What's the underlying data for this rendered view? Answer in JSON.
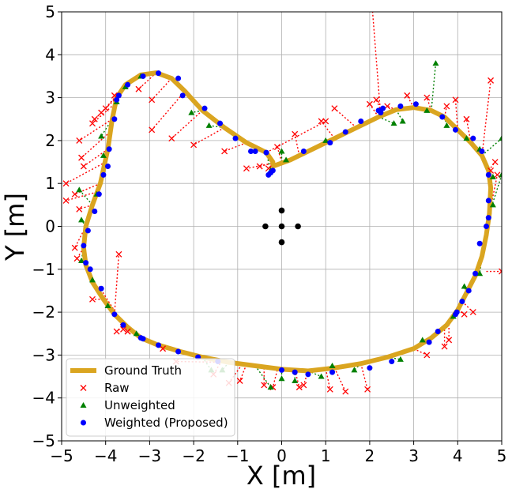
{
  "chart_data": {
    "type": "scatter",
    "xlabel": "X [m]",
    "ylabel": "Y [m]",
    "xlim": [
      -5,
      5
    ],
    "ylim": [
      -5,
      5
    ],
    "xticks": [
      "−5",
      "−4",
      "−3",
      "−2",
      "−1",
      "0",
      "1",
      "2",
      "3",
      "4",
      "5"
    ],
    "yticks": [
      "−5",
      "−4",
      "−3",
      "−2",
      "−1",
      "0",
      "1",
      "2",
      "3",
      "4",
      "5"
    ],
    "grid": true,
    "legend_position": "lower-left",
    "colors": {
      "ground_truth": "#daa520",
      "raw": "#ff0000",
      "unweighted": "#008000",
      "weighted": "#0000ff",
      "anchors": "#000000"
    },
    "legend": [
      {
        "label": "Ground Truth",
        "marker": "line",
        "color": "#daa520"
      },
      {
        "label": "Raw",
        "marker": "x",
        "color": "#ff0000"
      },
      {
        "label": "Unweighted",
        "marker": "triangle",
        "color": "#008000"
      },
      {
        "label": "Weighted (Proposed)",
        "marker": "circle",
        "color": "#0000ff"
      }
    ],
    "anchors": [
      [
        0,
        0
      ],
      [
        0,
        0.37
      ],
      [
        0,
        -0.37
      ],
      [
        -0.37,
        0
      ],
      [
        0.37,
        0
      ]
    ],
    "ground_truth": [
      [
        -0.35,
        1.72
      ],
      [
        -0.8,
        1.95
      ],
      [
        -1.3,
        2.3
      ],
      [
        -1.8,
        2.7
      ],
      [
        -2.2,
        3.15
      ],
      [
        -2.5,
        3.45
      ],
      [
        -2.85,
        3.58
      ],
      [
        -3.2,
        3.53
      ],
      [
        -3.55,
        3.3
      ],
      [
        -3.75,
        3.0
      ],
      [
        -3.85,
        2.5
      ],
      [
        -3.95,
        1.8
      ],
      [
        -4.12,
        1.0
      ],
      [
        -4.3,
        0.5
      ],
      [
        -4.45,
        0.0
      ],
      [
        -4.5,
        -0.5
      ],
      [
        -4.45,
        -0.9
      ],
      [
        -4.3,
        -1.3
      ],
      [
        -4.05,
        -1.7
      ],
      [
        -3.8,
        -2.05
      ],
      [
        -3.5,
        -2.35
      ],
      [
        -3.2,
        -2.6
      ],
      [
        -2.85,
        -2.75
      ],
      [
        -2.3,
        -2.92
      ],
      [
        -1.8,
        -3.05
      ],
      [
        -1.2,
        -3.17
      ],
      [
        -0.6,
        -3.25
      ],
      [
        0.0,
        -3.33
      ],
      [
        0.6,
        -3.37
      ],
      [
        1.2,
        -3.3
      ],
      [
        1.8,
        -3.2
      ],
      [
        2.4,
        -3.05
      ],
      [
        3.0,
        -2.85
      ],
      [
        3.4,
        -2.6
      ],
      [
        3.75,
        -2.3
      ],
      [
        4.0,
        -1.95
      ],
      [
        4.2,
        -1.55
      ],
      [
        4.4,
        -1.15
      ],
      [
        4.55,
        -0.7
      ],
      [
        4.65,
        -0.2
      ],
      [
        4.72,
        0.3
      ],
      [
        4.75,
        0.9
      ],
      [
        4.7,
        1.3
      ],
      [
        4.55,
        1.65
      ],
      [
        4.3,
        1.95
      ],
      [
        4.0,
        2.25
      ],
      [
        3.7,
        2.55
      ],
      [
        3.4,
        2.7
      ],
      [
        3.0,
        2.77
      ],
      [
        2.6,
        2.72
      ],
      [
        2.2,
        2.55
      ],
      [
        1.7,
        2.3
      ],
      [
        1.2,
        2.05
      ],
      [
        0.7,
        1.8
      ],
      [
        0.2,
        1.55
      ],
      [
        -0.2,
        1.4
      ],
      [
        -0.2,
        1.5
      ],
      [
        -0.35,
        1.72
      ]
    ],
    "raw": [
      [
        -0.35,
        1.72,
        1.0,
        2.45
      ],
      [
        -0.8,
        1.95,
        -1.3,
        1.75
      ],
      [
        -1.3,
        2.3,
        -2.0,
        1.9
      ],
      [
        -1.8,
        2.7,
        -2.5,
        2.05
      ],
      [
        -2.2,
        3.15,
        -2.95,
        2.25
      ],
      [
        -2.5,
        3.45,
        -2.95,
        2.95
      ],
      [
        -2.85,
        3.58,
        -3.25,
        3.2
      ],
      [
        -3.2,
        3.53,
        -3.8,
        3.05
      ],
      [
        -3.55,
        3.3,
        -4.0,
        2.75
      ],
      [
        -3.7,
        3.1,
        -4.1,
        2.65
      ],
      [
        -3.75,
        3.0,
        -4.25,
        2.5
      ],
      [
        -3.8,
        2.85,
        -4.3,
        2.4
      ],
      [
        -3.85,
        2.5,
        -4.6,
        2.0
      ],
      [
        -3.9,
        2.2,
        -4.55,
        1.6
      ],
      [
        -3.95,
        1.8,
        -4.5,
        1.4
      ],
      [
        -4.0,
        1.5,
        -4.9,
        1.0
      ],
      [
        -4.12,
        1.0,
        -4.7,
        0.75
      ],
      [
        -4.2,
        0.8,
        -4.9,
        0.6
      ],
      [
        -4.3,
        0.5,
        -4.6,
        0.4
      ],
      [
        -4.45,
        0.0,
        -4.7,
        -0.5
      ],
      [
        -4.5,
        -0.5,
        -4.65,
        -0.75
      ],
      [
        -4.05,
        -1.7,
        -4.3,
        -1.7
      ],
      [
        -3.8,
        -2.05,
        -3.7,
        -0.65
      ],
      [
        -3.7,
        -2.2,
        -3.6,
        -2.4
      ],
      [
        -3.5,
        -2.35,
        -3.5,
        -2.45
      ],
      [
        -2.85,
        -2.75,
        -2.7,
        -2.85
      ],
      [
        -1.2,
        -3.17,
        -2.4,
        -3.15
      ],
      [
        -1.4,
        -3.2,
        -1.55,
        -3.45
      ],
      [
        -0.8,
        -3.22,
        -0.95,
        -3.6
      ],
      [
        -0.9,
        -3.22,
        -1.2,
        -3.65
      ],
      [
        -0.4,
        -3.3,
        -0.4,
        -3.7
      ],
      [
        0.3,
        -3.35,
        0.4,
        -3.75
      ],
      [
        0.6,
        -3.37,
        0.5,
        -3.7
      ],
      [
        1.0,
        -3.32,
        1.1,
        -3.8
      ],
      [
        1.2,
        -3.3,
        1.45,
        -3.85
      ],
      [
        1.8,
        -3.2,
        1.95,
        -3.8
      ],
      [
        3.0,
        -2.85,
        3.3,
        -3.0
      ],
      [
        3.7,
        -2.4,
        3.7,
        -2.8
      ],
      [
        3.8,
        -2.2,
        3.8,
        -2.65
      ],
      [
        4.0,
        -1.95,
        4.15,
        -2.05
      ],
      [
        4.1,
        -1.75,
        4.35,
        -2.0
      ],
      [
        4.65,
        -1.05,
        5.0,
        -1.05
      ],
      [
        4.72,
        0.3,
        4.9,
        1.2
      ],
      [
        4.75,
        0.9,
        4.75,
        1.3
      ],
      [
        4.7,
        1.3,
        4.85,
        1.5
      ],
      [
        4.55,
        1.65,
        4.75,
        3.4
      ],
      [
        4.3,
        1.95,
        4.2,
        2.5
      ],
      [
        4.0,
        2.25,
        3.95,
        2.95
      ],
      [
        3.7,
        2.55,
        3.75,
        2.8
      ],
      [
        3.4,
        2.7,
        3.3,
        3.0
      ],
      [
        3.0,
        2.77,
        2.85,
        3.05
      ],
      [
        2.6,
        2.72,
        2.4,
        2.8
      ],
      [
        2.2,
        2.55,
        2.0,
        2.85
      ],
      [
        2.3,
        2.6,
        2.15,
        2.95
      ],
      [
        2.25,
        2.58,
        2.05,
        5.2
      ],
      [
        1.7,
        2.3,
        1.2,
        2.75
      ],
      [
        1.2,
        2.05,
        0.9,
        2.45
      ],
      [
        0.4,
        1.65,
        0.3,
        2.15
      ],
      [
        0.0,
        1.5,
        -0.1,
        1.85
      ],
      [
        -0.3,
        1.45,
        -0.5,
        1.4
      ],
      [
        -0.1,
        1.45,
        -0.3,
        1.35
      ],
      [
        -0.15,
        1.48,
        -0.8,
        1.35
      ],
      [
        -4.15,
        -1.4,
        -3.5,
        -2.45
      ],
      [
        -3.55,
        -2.3,
        -3.75,
        -2.45
      ],
      [
        -0.1,
        -3.35,
        -0.2,
        -3.75
      ]
    ],
    "unweighted": [
      [
        -3.2,
        3.53,
        -3.2,
        3.5
      ],
      [
        -3.55,
        3.3,
        -3.55,
        3.25
      ],
      [
        -3.75,
        3.0,
        -3.75,
        2.9
      ],
      [
        -3.85,
        2.5,
        -4.1,
        2.1
      ],
      [
        -3.95,
        1.8,
        -4.05,
        1.65
      ],
      [
        -4.12,
        1.0,
        -4.2,
        0.75
      ],
      [
        -4.3,
        0.5,
        -4.6,
        0.85
      ],
      [
        -4.45,
        0.0,
        -4.55,
        0.15
      ],
      [
        -4.5,
        -0.5,
        -4.55,
        -0.8
      ],
      [
        -1.8,
        2.7,
        -2.05,
        2.65
      ],
      [
        -1.3,
        2.3,
        -1.65,
        2.35
      ],
      [
        -0.35,
        1.72,
        -0.25,
        1.3
      ],
      [
        0.2,
        1.55,
        0.1,
        1.55
      ],
      [
        0.0,
        1.5,
        0.0,
        1.75
      ],
      [
        1.2,
        2.05,
        1.0,
        2.0
      ],
      [
        2.2,
        2.55,
        2.55,
        2.4
      ],
      [
        2.6,
        2.72,
        2.75,
        2.45
      ],
      [
        3.0,
        2.77,
        3.3,
        2.7
      ],
      [
        3.4,
        2.7,
        3.5,
        3.8
      ],
      [
        3.7,
        2.55,
        3.75,
        2.35
      ],
      [
        4.0,
        2.25,
        4.2,
        2.05
      ],
      [
        4.3,
        1.95,
        4.5,
        1.8
      ],
      [
        4.55,
        1.65,
        5.0,
        2.05
      ],
      [
        4.7,
        1.3,
        4.8,
        1.15
      ],
      [
        4.72,
        0.3,
        5.0,
        1.2
      ],
      [
        4.72,
        0.3,
        4.8,
        0.5
      ],
      [
        4.55,
        -0.7,
        4.5,
        -1.1
      ],
      [
        4.2,
        -1.55,
        4.15,
        -1.4
      ],
      [
        3.75,
        -2.3,
        3.9,
        -2.1
      ],
      [
        3.0,
        -2.85,
        3.2,
        -2.65
      ],
      [
        2.4,
        -3.05,
        2.7,
        -3.1
      ],
      [
        1.2,
        -3.3,
        1.15,
        -3.25
      ],
      [
        0.6,
        -3.37,
        0.9,
        -3.5
      ],
      [
        0.0,
        -3.33,
        0.0,
        -3.55
      ],
      [
        -0.6,
        -3.25,
        -0.25,
        -3.75
      ],
      [
        -1.2,
        -3.17,
        -1.35,
        -3.35
      ],
      [
        -1.8,
        -3.05,
        -1.6,
        -3.35
      ],
      [
        -3.2,
        -2.6,
        -3.3,
        -2.5
      ],
      [
        -3.8,
        -2.05,
        -3.95,
        -1.85
      ],
      [
        -4.3,
        -1.3,
        -4.3,
        -1.25
      ],
      [
        1.8,
        -3.2,
        1.65,
        -3.35
      ],
      [
        0.3,
        -3.35,
        0.3,
        -3.6
      ]
    ],
    "weighted": [
      [
        -0.35,
        1.72
      ],
      [
        -0.6,
        1.75
      ],
      [
        -0.3,
        1.2
      ],
      [
        -0.25,
        1.25
      ],
      [
        -0.2,
        1.3
      ],
      [
        0.5,
        1.75
      ],
      [
        1.1,
        1.95
      ],
      [
        1.45,
        2.2
      ],
      [
        1.8,
        2.45
      ],
      [
        2.2,
        2.7
      ],
      [
        2.25,
        2.65
      ],
      [
        2.3,
        2.75
      ],
      [
        2.7,
        2.8
      ],
      [
        3.05,
        2.85
      ],
      [
        3.65,
        2.55
      ],
      [
        3.95,
        2.25
      ],
      [
        4.35,
        2.05
      ],
      [
        4.55,
        1.75
      ],
      [
        4.7,
        1.2
      ],
      [
        4.7,
        0.6
      ],
      [
        4.7,
        0.2
      ],
      [
        4.65,
        0.0
      ],
      [
        4.5,
        -0.4
      ],
      [
        4.4,
        -1.1
      ],
      [
        4.25,
        -1.5
      ],
      [
        4.1,
        -1.75
      ],
      [
        3.98,
        -2.0
      ],
      [
        3.95,
        -2.05
      ],
      [
        3.55,
        -2.45
      ],
      [
        3.35,
        -2.7
      ],
      [
        2.5,
        -3.15
      ],
      [
        2.0,
        -3.3
      ],
      [
        1.15,
        -3.4
      ],
      [
        0.6,
        -3.45
      ],
      [
        0.3,
        -3.4
      ],
      [
        0.0,
        -3.35
      ],
      [
        -1.45,
        -3.15
      ],
      [
        -1.9,
        -3.05
      ],
      [
        -2.35,
        -2.92
      ],
      [
        -2.8,
        -2.77
      ],
      [
        -3.15,
        -2.62
      ],
      [
        -3.2,
        -2.6
      ],
      [
        -3.6,
        -2.3
      ],
      [
        -3.8,
        -2.05
      ],
      [
        -4.1,
        -1.45
      ],
      [
        -4.35,
        -1.0
      ],
      [
        -4.45,
        -0.85
      ],
      [
        -4.5,
        -0.45
      ],
      [
        -4.4,
        -0.1
      ],
      [
        -4.25,
        0.35
      ],
      [
        -4.15,
        0.75
      ],
      [
        -4.05,
        1.2
      ],
      [
        -3.95,
        1.4
      ],
      [
        -3.92,
        1.8
      ],
      [
        -3.8,
        2.5
      ],
      [
        -3.75,
        2.95
      ],
      [
        -3.7,
        3.05
      ],
      [
        -3.5,
        3.3
      ],
      [
        -3.15,
        3.5
      ],
      [
        -2.8,
        3.57
      ],
      [
        -2.35,
        3.45
      ],
      [
        -2.25,
        3.05
      ],
      [
        -1.75,
        2.75
      ],
      [
        -1.4,
        2.4
      ],
      [
        -1.05,
        2.05
      ],
      [
        -0.7,
        1.75
      ]
    ]
  }
}
